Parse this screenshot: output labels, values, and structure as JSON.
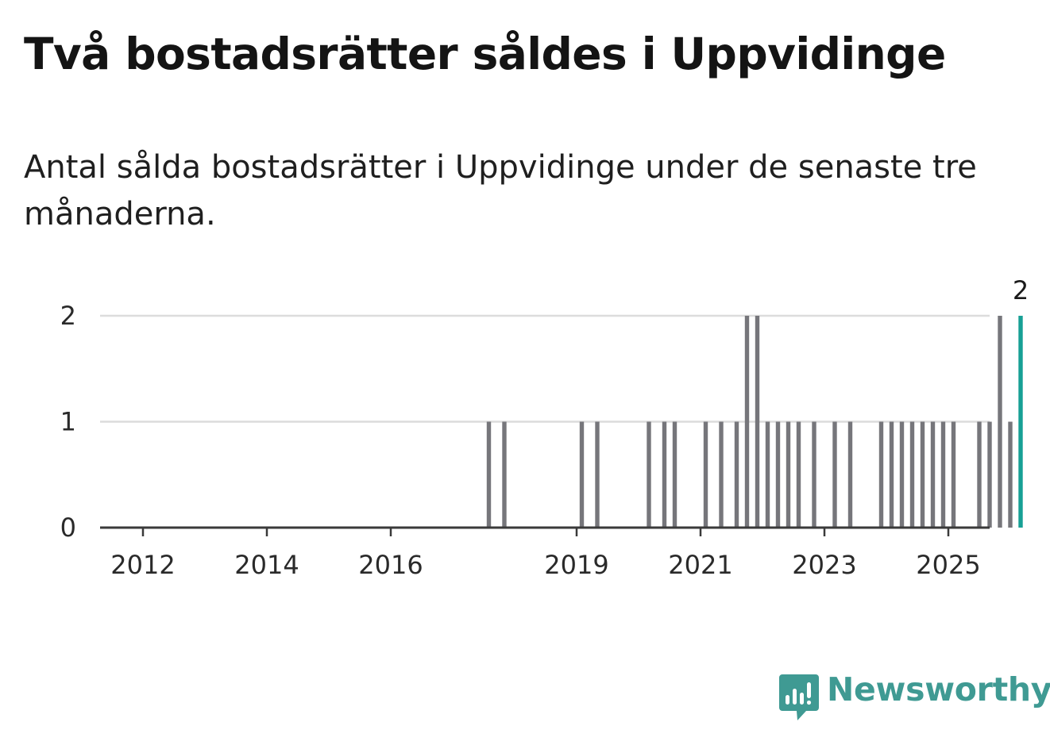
{
  "title": "Två bostadsrätter såldes i Uppvidinge",
  "subtitle": "Antal sålda bostadsrätter i Uppvidinge under de senaste tre månaderna.",
  "brand": {
    "name": "Newsworthy",
    "color": "#3f9a93",
    "icon": "newsworthy-logo-icon"
  },
  "colors": {
    "bar": "#76767b",
    "highlight": "#17a095",
    "grid": "#dcdcdc",
    "axis": "#3a3a3a"
  },
  "chart_data": {
    "type": "bar",
    "xlabel": "",
    "ylabel": "",
    "ylim": [
      0,
      2
    ],
    "yticks": [
      "0",
      "1",
      "2"
    ],
    "xticks": [
      "2012",
      "2014",
      "2016",
      "2019",
      "2021",
      "2023",
      "2025"
    ],
    "grid": true,
    "legend": "none",
    "highlight_label": "2",
    "series": [
      {
        "values": [
          {
            "x": "2017-08",
            "y": 1
          },
          {
            "x": "2017-11",
            "y": 1
          },
          {
            "x": "2019-02",
            "y": 1
          },
          {
            "x": "2019-05",
            "y": 1
          },
          {
            "x": "2020-03",
            "y": 1
          },
          {
            "x": "2020-06",
            "y": 1
          },
          {
            "x": "2020-08",
            "y": 1
          },
          {
            "x": "2021-02",
            "y": 1
          },
          {
            "x": "2021-05",
            "y": 1
          },
          {
            "x": "2021-08",
            "y": 1
          },
          {
            "x": "2021-10",
            "y": 2
          },
          {
            "x": "2021-12",
            "y": 2
          },
          {
            "x": "2022-02",
            "y": 1
          },
          {
            "x": "2022-04",
            "y": 1
          },
          {
            "x": "2022-06",
            "y": 1
          },
          {
            "x": "2022-08",
            "y": 1
          },
          {
            "x": "2022-11",
            "y": 1
          },
          {
            "x": "2023-03",
            "y": 1
          },
          {
            "x": "2023-06",
            "y": 1
          },
          {
            "x": "2023-12",
            "y": 1
          },
          {
            "x": "2024-02",
            "y": 1
          },
          {
            "x": "2024-04",
            "y": 1
          },
          {
            "x": "2024-06",
            "y": 1
          },
          {
            "x": "2024-08",
            "y": 1
          },
          {
            "x": "2024-10",
            "y": 1
          },
          {
            "x": "2024-12",
            "y": 1
          },
          {
            "x": "2025-02",
            "y": 1
          },
          {
            "x": "2025-07",
            "y": 1
          },
          {
            "x": "2025-09",
            "y": 1
          },
          {
            "x": "2025-11",
            "y": 2
          },
          {
            "x": "2026-01",
            "y": 1
          },
          {
            "x": "2026-03",
            "y": 2,
            "highlight": true
          }
        ]
      }
    ]
  }
}
